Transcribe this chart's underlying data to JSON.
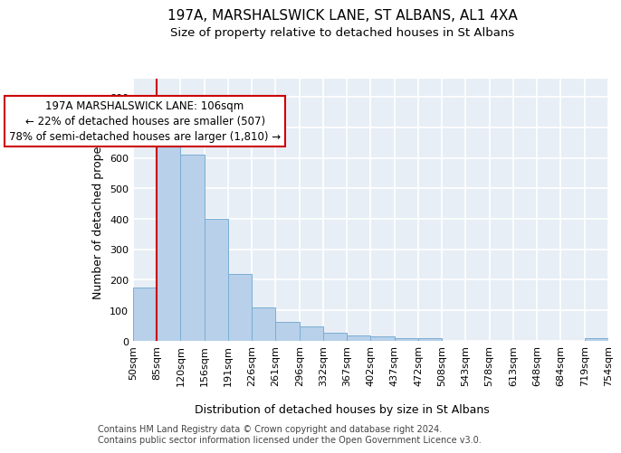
{
  "title1": "197A, MARSHALSWICK LANE, ST ALBANS, AL1 4XA",
  "title2": "Size of property relative to detached houses in St Albans",
  "xlabel": "Distribution of detached houses by size in St Albans",
  "ylabel": "Number of detached properties",
  "footer": "Contains HM Land Registry data © Crown copyright and database right 2024.\nContains public sector information licensed under the Open Government Licence v3.0.",
  "bar_values": [
    175,
    660,
    610,
    400,
    218,
    110,
    63,
    48,
    25,
    17,
    15,
    10,
    8,
    1,
    1,
    1,
    1,
    1,
    0,
    8
  ],
  "bar_labels": [
    "50sqm",
    "85sqm",
    "120sqm",
    "156sqm",
    "191sqm",
    "226sqm",
    "261sqm",
    "296sqm",
    "332sqm",
    "367sqm",
    "402sqm",
    "437sqm",
    "472sqm",
    "508sqm",
    "543sqm",
    "578sqm",
    "613sqm",
    "648sqm",
    "684sqm",
    "719sqm",
    "754sqm"
  ],
  "bar_color": "#b8d0ea",
  "bar_edgecolor": "#7aaed4",
  "property_line_x": 1.0,
  "annotation_text": "197A MARSHALSWICK LANE: 106sqm\n← 22% of detached houses are smaller (507)\n78% of semi-detached houses are larger (1,810) →",
  "annotation_box_color": "#ffffff",
  "annotation_box_edgecolor": "#cc0000",
  "vline_color": "#cc0000",
  "background_color": "#ffffff",
  "plot_bg_color": "#e8eef5",
  "ylim": [
    0,
    860
  ],
  "yticks": [
    0,
    100,
    200,
    300,
    400,
    500,
    600,
    700,
    800
  ],
  "grid_color": "#ffffff",
  "title_fontsize": 11,
  "subtitle_fontsize": 9.5,
  "axis_label_fontsize": 9,
  "tick_fontsize": 8,
  "footer_fontsize": 7,
  "ann_fontsize": 8.5
}
